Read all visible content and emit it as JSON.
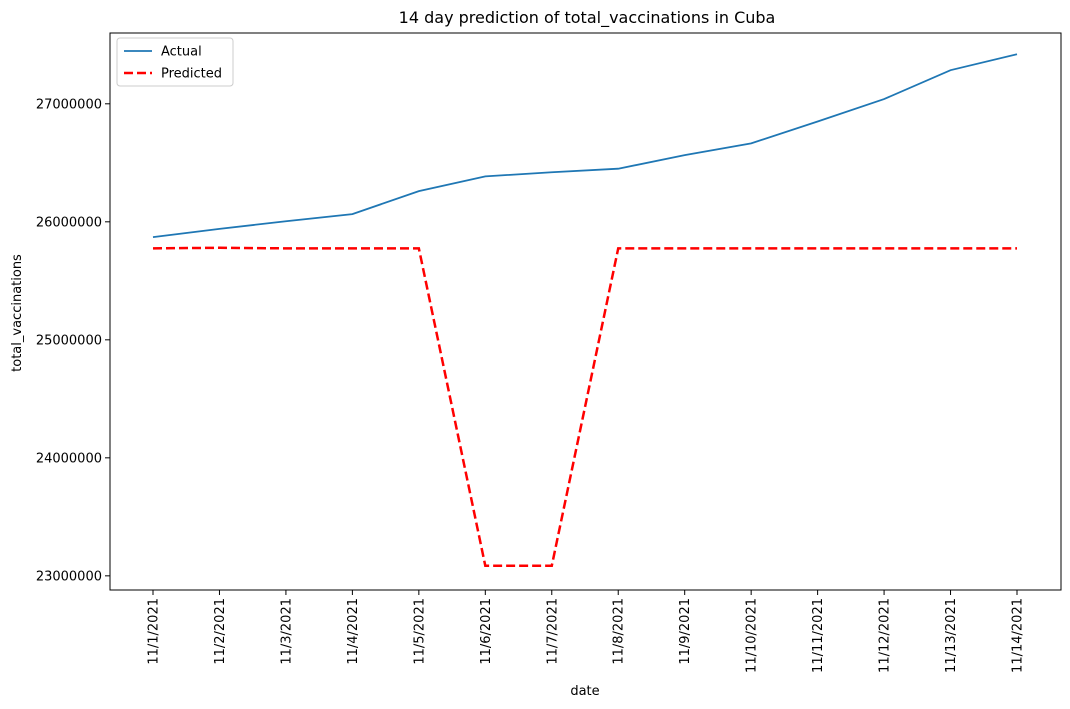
{
  "chart_data": {
    "type": "line",
    "title": "14 day prediction of total_vaccinations in Cuba",
    "xlabel": "date",
    "ylabel": "total_vaccinations",
    "categories": [
      "11/1/2021",
      "11/2/2021",
      "11/3/2021",
      "11/4/2021",
      "11/5/2021",
      "11/6/2021",
      "11/7/2021",
      "11/8/2021",
      "11/9/2021",
      "11/10/2021",
      "11/11/2021",
      "11/12/2021",
      "11/13/2021",
      "11/14/2021"
    ],
    "ylim": [
      22880000,
      27600000
    ],
    "yticks": [
      23000000,
      24000000,
      25000000,
      26000000,
      27000000
    ],
    "ytick_labels": [
      "23000000",
      "24000000",
      "25000000",
      "26000000",
      "27000000"
    ],
    "grid": false,
    "legend_position": "upper-left",
    "series": [
      {
        "name": "Actual",
        "color": "#1f77b4",
        "style": "solid",
        "values": [
          25870000,
          25940000,
          26005000,
          26065000,
          26260000,
          26385000,
          26420000,
          26450000,
          26565000,
          26665000,
          26850000,
          27040000,
          27285000,
          27420000
        ]
      },
      {
        "name": "Predicted",
        "color": "#ff0000",
        "style": "dashed",
        "values": [
          25775000,
          25780000,
          25775000,
          25775000,
          25775000,
          23085000,
          23085000,
          25775000,
          25775000,
          25775000,
          25775000,
          25775000,
          25775000,
          25775000
        ]
      }
    ]
  }
}
